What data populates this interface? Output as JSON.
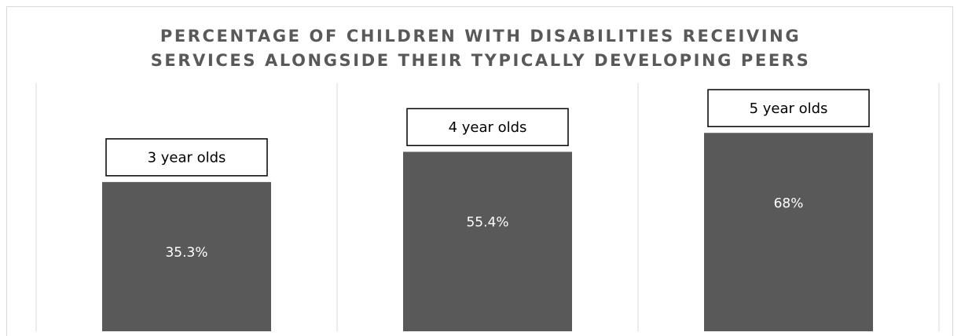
{
  "chart_data": {
    "type": "bar",
    "title_lines": [
      "PERCENTAGE OF CHILDREN WITH DISABILITIES RECEIVING",
      "SERVICES ALONGSIDE THEIR TYPICALLY DEVELOPING PEERS"
    ],
    "categories": [
      "3 year olds",
      "4 year olds",
      "5 year olds"
    ],
    "values": [
      35.3,
      55.4,
      68
    ],
    "value_labels": [
      "35.3%",
      "55.4%",
      "68%"
    ],
    "unit": "%",
    "ylim": [
      -64,
      100
    ],
    "grid": "vertical separators",
    "legend": "none",
    "colors": {
      "bar": "#595959",
      "title": "#595959",
      "gridline": "#d9d9d9",
      "label_text": "#ffffff"
    }
  }
}
